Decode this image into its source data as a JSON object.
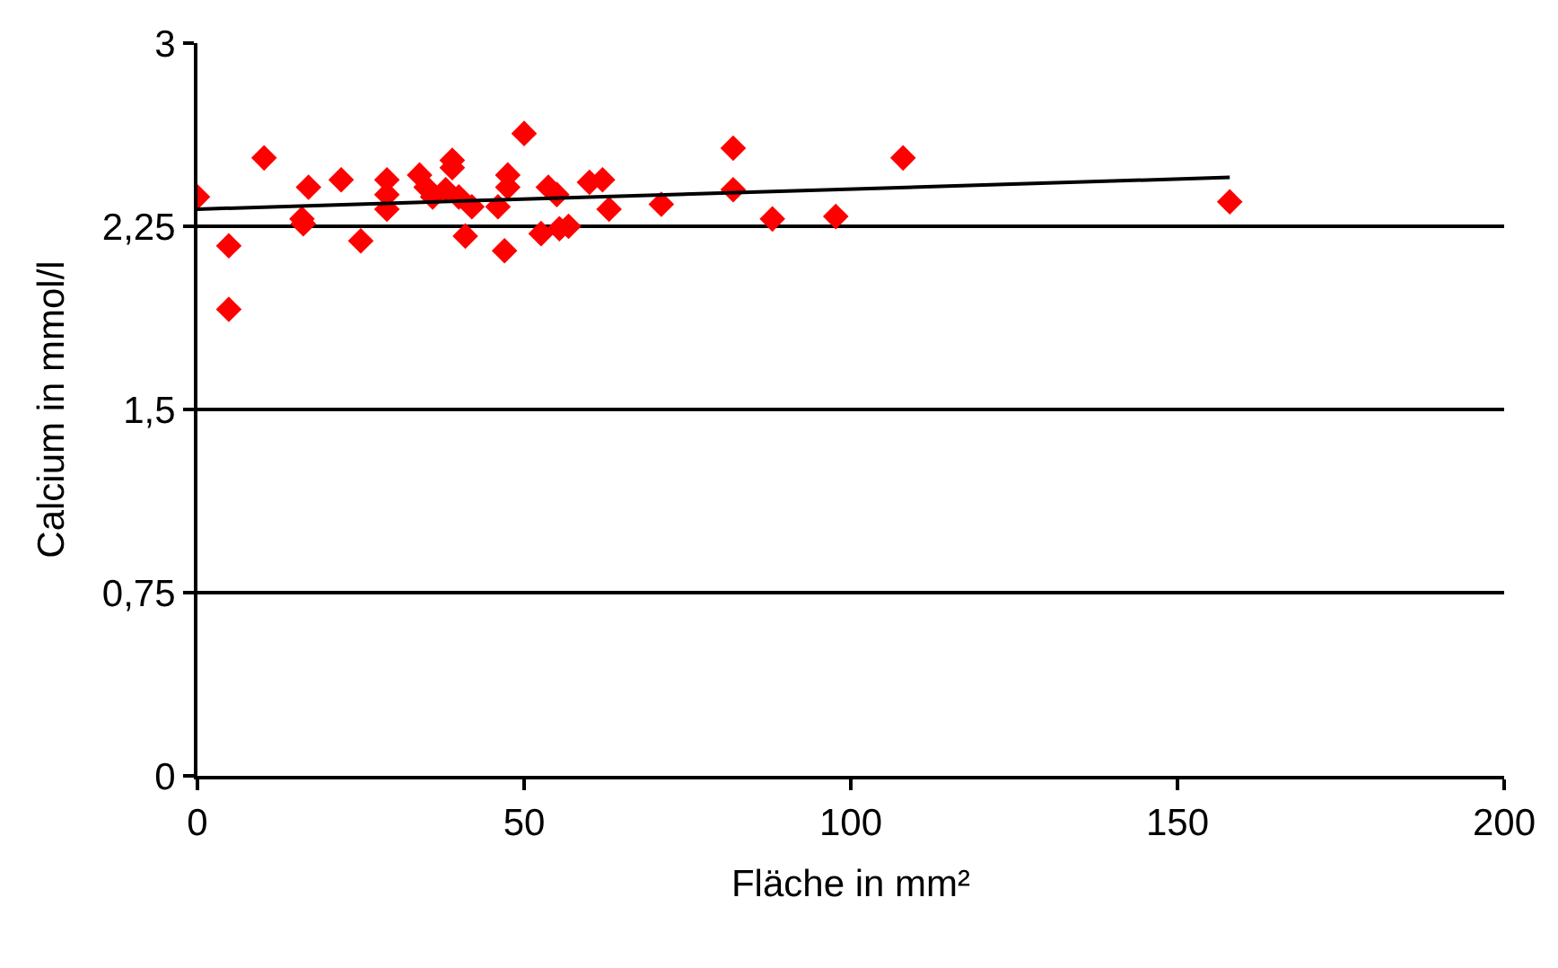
{
  "chart_data": {
    "type": "scatter",
    "xlabel": "Fläche in mm²",
    "ylabel": "Calcium in mmol/l",
    "xlim": [
      0,
      200
    ],
    "xticks": [
      0,
      50,
      100,
      150,
      200
    ],
    "ylim": [
      0,
      3
    ],
    "yticks": [
      0,
      {
        "value": 0.75,
        "label": "0,75"
      },
      {
        "value": 1.5,
        "label": "1,5"
      },
      {
        "value": 2.25,
        "label": "2,25"
      },
      3
    ],
    "grid": "y",
    "series": [
      {
        "color": "#ff0000",
        "marker": "diamond",
        "x": [
          0,
          4.8,
          4.8,
          10.2,
          16,
          16.2,
          17,
          22,
          25,
          29,
          29,
          29,
          34,
          35,
          36,
          38,
          39,
          39,
          40,
          41,
          42,
          46,
          47,
          47.5,
          47.5,
          50,
          52.6,
          53.7,
          55,
          55.4,
          56.8,
          60,
          62,
          63,
          71,
          82,
          82,
          88,
          97.7,
          108,
          158
        ],
        "values": [
          2.37,
          2.17,
          1.91,
          2.53,
          2.28,
          2.26,
          2.41,
          2.44,
          2.19,
          2.44,
          2.38,
          2.32,
          2.46,
          2.41,
          2.37,
          2.4,
          2.52,
          2.49,
          2.37,
          2.21,
          2.33,
          2.33,
          2.15,
          2.41,
          2.46,
          2.63,
          2.22,
          2.41,
          2.38,
          2.24,
          2.25,
          2.43,
          2.44,
          2.32,
          2.34,
          2.57,
          2.4,
          2.28,
          2.29,
          2.53,
          2.35
        ]
      },
      {
        "type": "line",
        "color": "#000000",
        "x": [
          0,
          158
        ],
        "values": [
          2.32,
          2.45
        ]
      }
    ]
  }
}
